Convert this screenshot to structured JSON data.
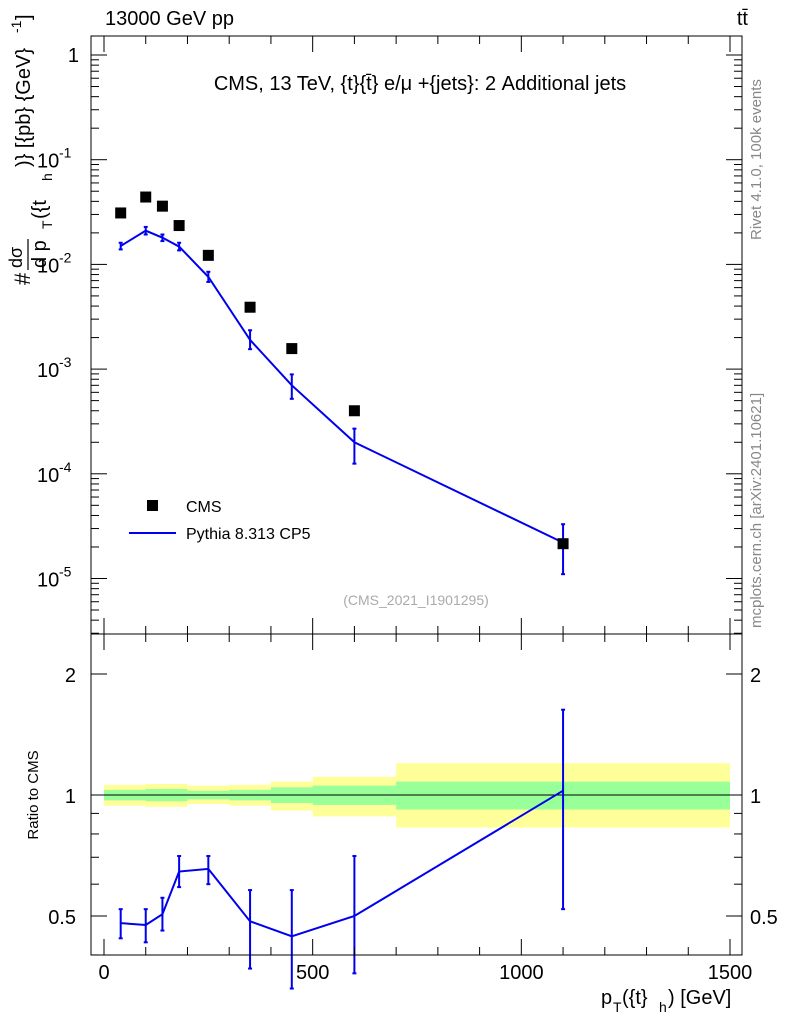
{
  "header": {
    "left": "13000 GeV pp",
    "right": "tt̄"
  },
  "side_labels": {
    "rivet": "Rivet 4.1.0,  100k events",
    "mcplots": "mcplots.cern.ch [arXiv:2401.10621]"
  },
  "chart_data": [
    {
      "type": "line",
      "title": "CMS, 13 TeV, {t}{t̄} e/μ +{jets}: 2 Additional jets",
      "watermark": "(CMS_2021_I1901295)",
      "yscale": "log",
      "ylim": [
        3e-06,
        2
      ],
      "xlim": [
        -50,
        1500
      ],
      "ylabel": "# dσ / d pT({t}h)} [{pb} {GeV}^-1]",
      "ylabel_parts": {
        "hash": "#",
        "num": "dσ",
        "den": "d p",
        "den_sub": "T",
        "den_rest": "({t",
        "den_sub2": "h",
        "outer": ")} [{pb} {GeV}",
        "outer_sup": "-1",
        "outer_end": "]"
      },
      "ytick_labels": [
        {
          "base": "1",
          "exp": ""
        },
        {
          "base": "10",
          "exp": "-1"
        },
        {
          "base": "10",
          "exp": "-2"
        },
        {
          "base": "10",
          "exp": "-3"
        },
        {
          "base": "10",
          "exp": "-4"
        },
        {
          "base": "10",
          "exp": "-5"
        }
      ],
      "legend": {
        "position": "lower-left",
        "entries": [
          "CMS",
          "Pythia 8.313 CP5"
        ]
      },
      "series": [
        {
          "name": "CMS",
          "style": "markers",
          "x": [
            40,
            100,
            140,
            180,
            250,
            350,
            450,
            600,
            1100
          ],
          "y": [
            0.031,
            0.044,
            0.036,
            0.0235,
            0.0122,
            0.0039,
            0.00157,
            0.0004,
            2.15e-05
          ]
        },
        {
          "name": "Pythia 8.313 CP5",
          "style": "line",
          "color": "#0000ee",
          "x": [
            40,
            100,
            140,
            180,
            250,
            350,
            450,
            600,
            1100
          ],
          "y": [
            0.015,
            0.021,
            0.018,
            0.0148,
            0.0076,
            0.0019,
            0.0007,
            0.0002,
            2.2e-05
          ],
          "err_lo": [
            0.0139,
            0.0193,
            0.0167,
            0.0136,
            0.0068,
            0.00155,
            0.00052,
            0.000125,
            1.1e-05
          ],
          "err_hi": [
            0.0161,
            0.0228,
            0.0193,
            0.0161,
            0.0085,
            0.00235,
            0.00089,
            0.00027,
            3.3e-05
          ]
        }
      ]
    },
    {
      "type": "line",
      "ylabel": "Ratio to CMS",
      "xlabel": "pT({t}h) [GeV]",
      "xlabel_parts": {
        "p": "p",
        "sub": "T",
        "mid": "({t}",
        "sub2": "h",
        "end": ") [GeV]"
      },
      "ylim": [
        0.34,
        2.35
      ],
      "xlim": [
        -50,
        1500
      ],
      "xticks": [
        0,
        500,
        1000,
        1500
      ],
      "yticks_left": [
        "2",
        "1",
        "0.5"
      ],
      "yticks_right": [
        "2",
        "1",
        "0.5"
      ],
      "bands": {
        "bin_edges": [
          0,
          200,
          500,
          700,
          1500
        ],
        "inner": [
          [
            0.97,
            1.03
          ],
          [
            0.97,
            1.03
          ],
          [
            0.96,
            1.04
          ],
          [
            0.95,
            1.05
          ],
          [
            0.93,
            1.07
          ]
        ],
        "outer": [
          [
            0.94,
            1.06
          ],
          [
            0.94,
            1.06
          ],
          [
            0.93,
            1.08
          ],
          [
            0.91,
            1.09
          ],
          [
            0.87,
            1.16
          ]
        ],
        "step_x": [
          0,
          40,
          80,
          100,
          120,
          160,
          200,
          300,
          400,
          500,
          700,
          1500
        ],
        "step_inner_lo": [
          0.97,
          0.97,
          0.97,
          0.965,
          0.965,
          0.965,
          0.975,
          0.97,
          0.955,
          0.945,
          0.92
        ],
        "step_inner_hi": [
          1.03,
          1.03,
          1.03,
          1.035,
          1.035,
          1.035,
          1.025,
          1.03,
          1.045,
          1.055,
          1.08
        ],
        "step_outer_lo": [
          0.94,
          0.94,
          0.94,
          0.935,
          0.935,
          0.935,
          0.95,
          0.94,
          0.915,
          0.885,
          0.83
        ],
        "step_outer_hi": [
          1.06,
          1.06,
          1.06,
          1.065,
          1.065,
          1.065,
          1.055,
          1.06,
          1.08,
          1.11,
          1.2
        ],
        "inner_color": "#99ff99",
        "outer_color": "#ffff99"
      },
      "series": [
        {
          "name": "Pythia 8.313 CP5 / CMS",
          "color": "#0000ee",
          "x": [
            40,
            100,
            140,
            180,
            250,
            350,
            450,
            600,
            1100
          ],
          "y": [
            0.48,
            0.475,
            0.505,
            0.645,
            0.655,
            0.485,
            0.445,
            0.5,
            1.025
          ],
          "err_lo": [
            0.44,
            0.43,
            0.46,
            0.59,
            0.6,
            0.37,
            0.33,
            0.36,
            0.52
          ],
          "err_hi": [
            0.52,
            0.52,
            0.555,
            0.705,
            0.705,
            0.58,
            0.58,
            0.705,
            1.63
          ]
        }
      ]
    }
  ]
}
